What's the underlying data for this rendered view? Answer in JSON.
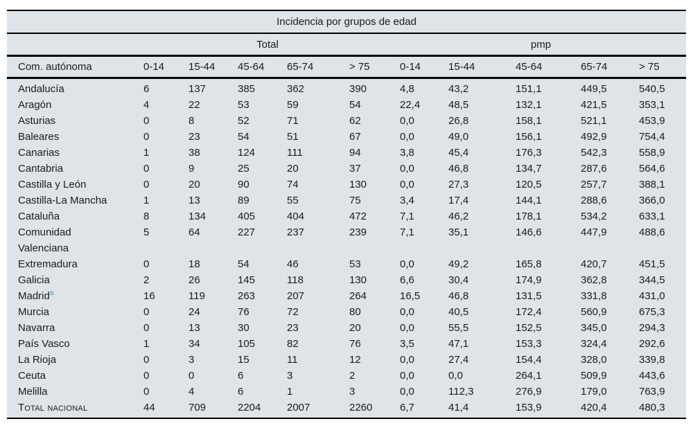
{
  "title": "Incidencia por grupos de edad",
  "groups": {
    "total": "Total",
    "pmp": "pmp"
  },
  "columns": {
    "region": "Com. autónoma",
    "age_groups": [
      "0-14",
      "15-44",
      "45-64",
      "65-74",
      "> 75"
    ]
  },
  "colors": {
    "table_bg": "#dee4e7",
    "rule": "#000000",
    "text": "#1b1b1b",
    "footnote_marker": "#3e9ed5"
  },
  "footnote_marker": "a",
  "rows": [
    {
      "name": "Andalucía",
      "total": [
        "6",
        "137",
        "385",
        "362",
        "390"
      ],
      "pmp": [
        "4,8",
        "43,2",
        "151,1",
        "449,5",
        "540,5"
      ]
    },
    {
      "name": "Aragón",
      "total": [
        "4",
        "22",
        "53",
        "59",
        "54"
      ],
      "pmp": [
        "22,4",
        "48,5",
        "132,1",
        "421,5",
        "353,1"
      ]
    },
    {
      "name": "Asturias",
      "total": [
        "0",
        "8",
        "52",
        "71",
        "62"
      ],
      "pmp": [
        "0,0",
        "26,8",
        "158,1",
        "521,1",
        "453,9"
      ]
    },
    {
      "name": "Baleares",
      "total": [
        "0",
        "23",
        "54",
        "51",
        "67"
      ],
      "pmp": [
        "0,0",
        "49,0",
        "156,1",
        "492,9",
        "754,4"
      ]
    },
    {
      "name": "Canarias",
      "total": [
        "1",
        "38",
        "124",
        "111",
        "94"
      ],
      "pmp": [
        "3,8",
        "45,4",
        "176,3",
        "542,3",
        "558,9"
      ]
    },
    {
      "name": "Cantabria",
      "total": [
        "0",
        "9",
        "25",
        "20",
        "37"
      ],
      "pmp": [
        "0,0",
        "46,8",
        "134,7",
        "287,6",
        "564,6"
      ]
    },
    {
      "name": "Castilla y León",
      "total": [
        "0",
        "20",
        "90",
        "74",
        "130"
      ],
      "pmp": [
        "0,0",
        "27,3",
        "120,5",
        "257,7",
        "388,1"
      ]
    },
    {
      "name": "Castilla-La Mancha",
      "total": [
        "1",
        "13",
        "89",
        "55",
        "75"
      ],
      "pmp": [
        "3,4",
        "17,4",
        "144,1",
        "288,6",
        "366,0"
      ]
    },
    {
      "name": "Cataluña",
      "total": [
        "8",
        "134",
        "405",
        "404",
        "472"
      ],
      "pmp": [
        "7,1",
        "46,2",
        "178,1",
        "534,2",
        "633,1"
      ]
    },
    {
      "name": "Comunidad Valenciana",
      "total": [
        "5",
        "64",
        "227",
        "237",
        "239"
      ],
      "pmp": [
        "7,1",
        "35,1",
        "146,6",
        "447,9",
        "488,6"
      ]
    },
    {
      "name": "Extremadura",
      "total": [
        "0",
        "18",
        "54",
        "46",
        "53"
      ],
      "pmp": [
        "0,0",
        "49,2",
        "165,8",
        "420,7",
        "451,5"
      ]
    },
    {
      "name": "Galicia",
      "total": [
        "2",
        "26",
        "145",
        "118",
        "130"
      ],
      "pmp": [
        "6,6",
        "30,4",
        "174,9",
        "362,8",
        "344,5"
      ]
    },
    {
      "name": "Madrid",
      "sup": "a",
      "total": [
        "16",
        "119",
        "263",
        "207",
        "264"
      ],
      "pmp": [
        "16,5",
        "46,8",
        "131,5",
        "331,8",
        "431,0"
      ]
    },
    {
      "name": "Murcia",
      "total": [
        "0",
        "24",
        "76",
        "72",
        "80"
      ],
      "pmp": [
        "0,0",
        "40,5",
        "172,4",
        "560,9",
        "675,3"
      ]
    },
    {
      "name": "Navarra",
      "total": [
        "0",
        "13",
        "30",
        "23",
        "20"
      ],
      "pmp": [
        "0,0",
        "55,5",
        "152,5",
        "345,0",
        "294,3"
      ]
    },
    {
      "name": "País Vasco",
      "total": [
        "1",
        "34",
        "105",
        "82",
        "76"
      ],
      "pmp": [
        "3,5",
        "47,1",
        "153,3",
        "324,4",
        "292,6"
      ]
    },
    {
      "name": "La Rioja",
      "total": [
        "0",
        "3",
        "15",
        "11",
        "12"
      ],
      "pmp": [
        "0,0",
        "27,4",
        "154,4",
        "328,0",
        "339,8"
      ]
    },
    {
      "name": "Ceuta",
      "total": [
        "0",
        "0",
        "6",
        "3",
        "2"
      ],
      "pmp": [
        "0,0",
        "0,0",
        "264,1",
        "509,9",
        "443,6"
      ]
    },
    {
      "name": "Melilla",
      "total": [
        "0",
        "4",
        "6",
        "1",
        "3"
      ],
      "pmp": [
        "0,0",
        "112,3",
        "276,9",
        "179,0",
        "763,9"
      ]
    },
    {
      "name": "Total nacional",
      "is_total": true,
      "total": [
        "44",
        "709",
        "2204",
        "2007",
        "2260"
      ],
      "pmp": [
        "6,7",
        "41,4",
        "153,9",
        "420,4",
        "480,3"
      ]
    }
  ]
}
